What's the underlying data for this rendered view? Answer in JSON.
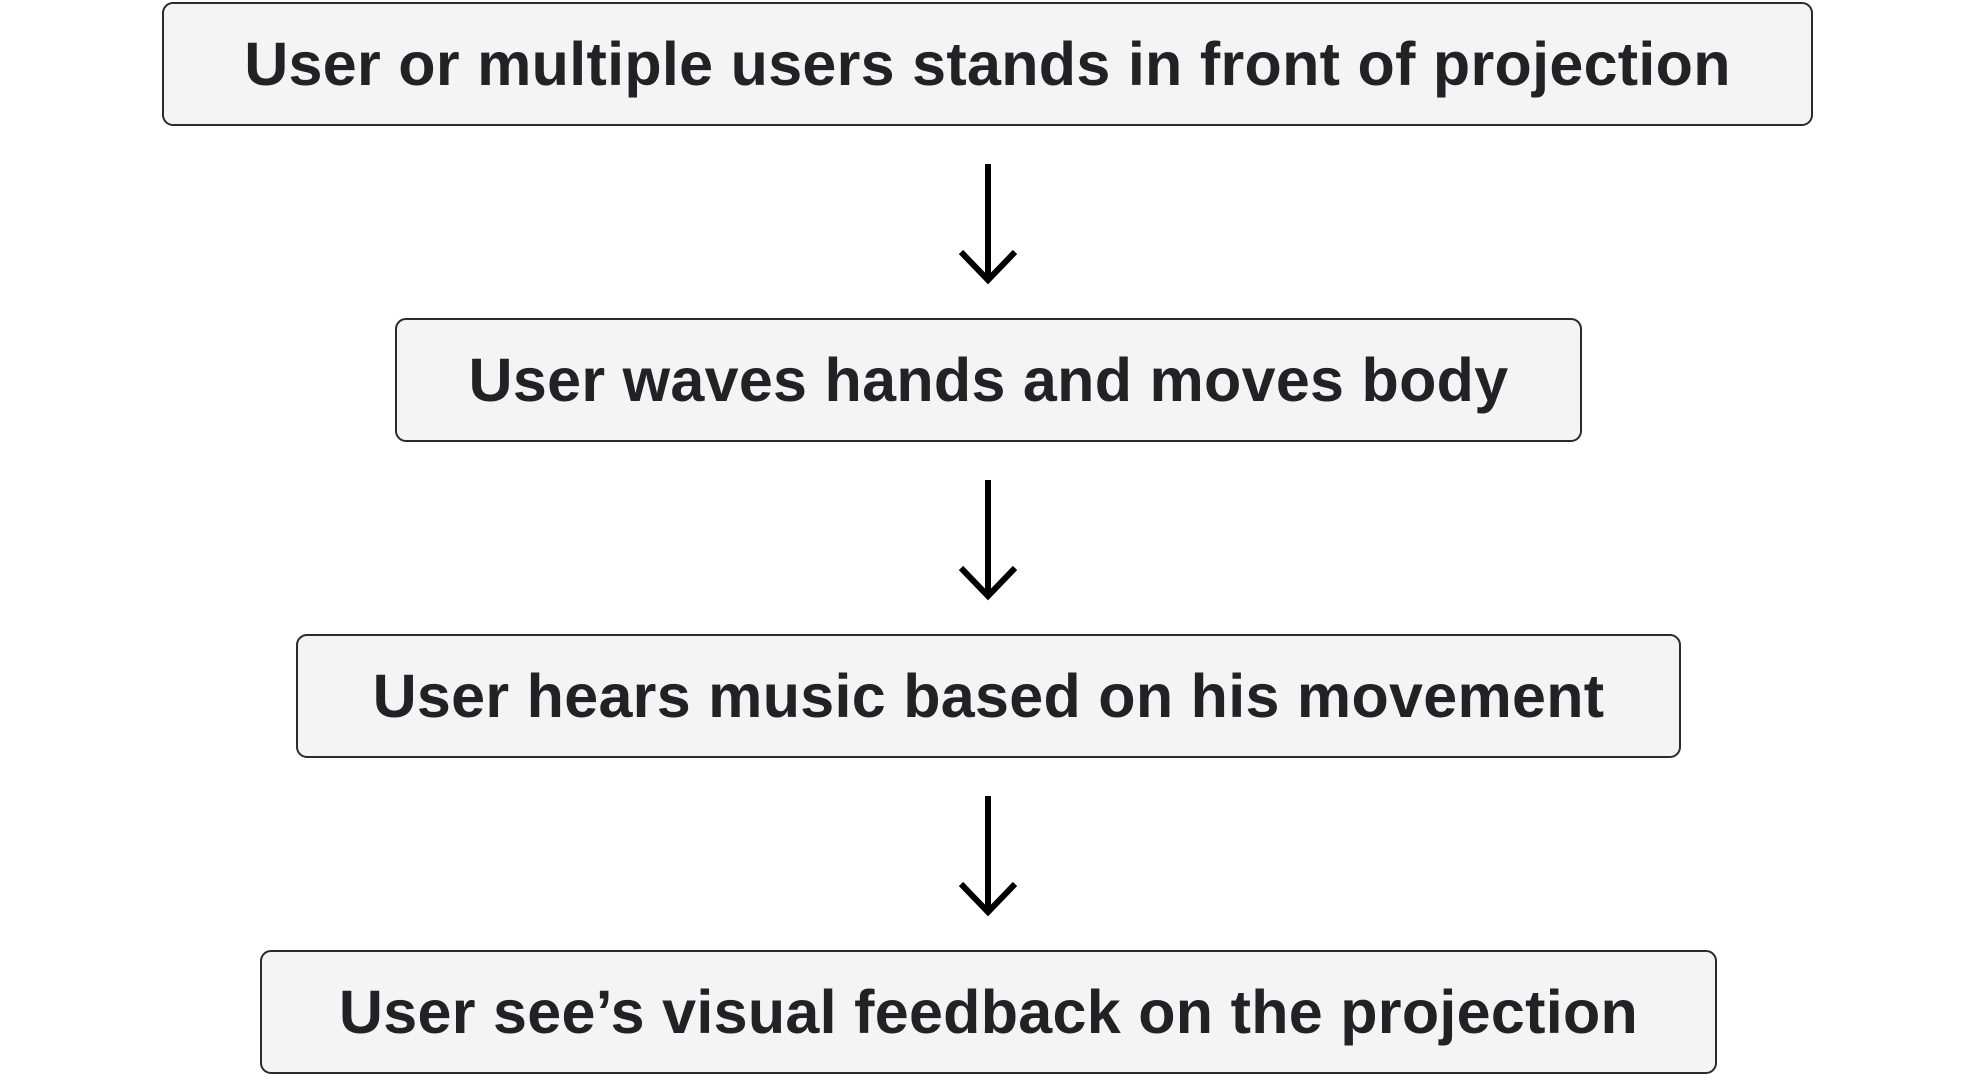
{
  "diagram": {
    "colors": {
      "box_fill": "#f4f4f4",
      "box_border": "#2b2b2b",
      "text": "#222226",
      "arrow": "#000000",
      "background": "#ffffff"
    },
    "steps": [
      {
        "label": "User or multiple users stands in front of projection"
      },
      {
        "label": "User waves hands and moves body"
      },
      {
        "label": "User hears music based on his movement"
      },
      {
        "label": "User see’s visual feedback on the projection"
      }
    ],
    "connector_icon": "arrow-down-icon"
  }
}
